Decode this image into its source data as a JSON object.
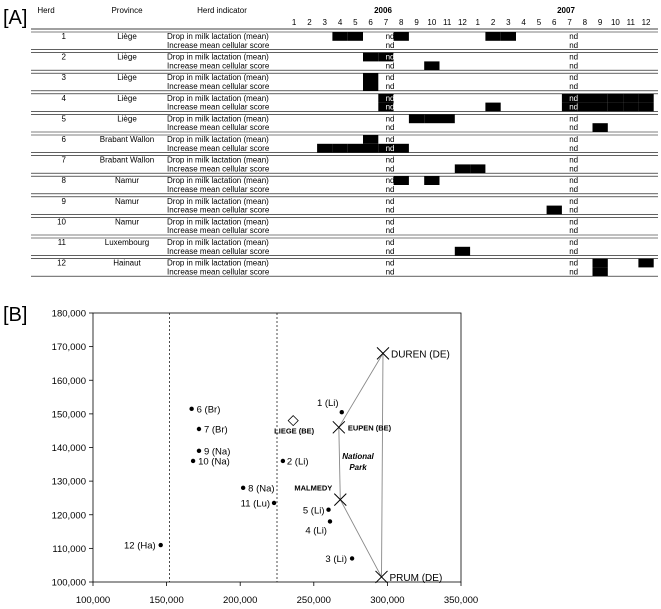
{
  "panel_a": {
    "label": "[A]",
    "headers": {
      "herd": "Herd",
      "province": "Province",
      "indicator": "Herd indicator"
    },
    "years": [
      "2006",
      "2007"
    ],
    "months": [
      "1",
      "2",
      "3",
      "4",
      "5",
      "6",
      "7",
      "8",
      "9",
      "10",
      "11",
      "12",
      "1",
      "2",
      "3",
      "4",
      "5",
      "6",
      "7",
      "8",
      "9",
      "10",
      "11",
      "12"
    ],
    "nd_label": "nd",
    "indicators": [
      "Drop in milk lactation (mean)",
      "Increase mean cellular score"
    ],
    "rows": [
      {
        "herd": "1",
        "province": "Liège",
        "drop": [
          4,
          5,
          8,
          14,
          15
        ],
        "increase": []
      },
      {
        "herd": "2",
        "province": "Liège",
        "drop": [
          6,
          7
        ],
        "increase": [
          10
        ]
      },
      {
        "herd": "3",
        "province": "Liège",
        "drop": [
          6
        ],
        "increase": [
          6
        ]
      },
      {
        "herd": "4",
        "province": "Liège",
        "drop": [
          7,
          19,
          20,
          21,
          22,
          23,
          24
        ],
        "increase": [
          7,
          14,
          19,
          20,
          21,
          22,
          23,
          24
        ]
      },
      {
        "herd": "5",
        "province": "Liège",
        "drop": [
          9,
          10,
          11
        ],
        "increase": [
          21
        ]
      },
      {
        "herd": "6",
        "province": "Brabant Wallon",
        "drop": [
          6
        ],
        "increase": [
          3,
          4,
          5,
          6,
          7,
          8
        ]
      },
      {
        "herd": "7",
        "province": "Brabant Wallon",
        "drop": [],
        "increase": [
          12,
          13
        ]
      },
      {
        "herd": "8",
        "province": "Namur",
        "drop": [
          8,
          10
        ],
        "increase": []
      },
      {
        "herd": "9",
        "province": "Namur",
        "drop": [],
        "increase": [
          18
        ]
      },
      {
        "herd": "10",
        "province": "Namur",
        "drop": [],
        "increase": []
      },
      {
        "herd": "11",
        "province": "Luxembourg",
        "drop": [],
        "increase": [
          12
        ]
      },
      {
        "herd": "12",
        "province": "Hainaut",
        "drop": [
          21,
          24
        ],
        "increase": [
          21
        ]
      }
    ]
  },
  "panel_b": {
    "label": "[B]",
    "chart_data": {
      "type": "scatter",
      "xlim": [
        100000,
        350000
      ],
      "ylim": [
        100000,
        180000
      ],
      "xticks": [
        "100,000",
        "150,000",
        "200,000",
        "250,000",
        "300,000",
        "350,000"
      ],
      "yticks": [
        "100,000",
        "110,000",
        "120,000",
        "130,000",
        "140,000",
        "150,000",
        "160,000",
        "170,000",
        "180,000"
      ],
      "vlines": [
        152000,
        225000
      ],
      "herds": [
        {
          "label": "1 (Li)",
          "x": 269000,
          "y": 150500
        },
        {
          "label": "2 (Li)",
          "x": 229000,
          "y": 136000
        },
        {
          "label": "3 (Li)",
          "x": 276000,
          "y": 107000
        },
        {
          "label": "4 (Li)",
          "x": 261000,
          "y": 118000
        },
        {
          "label": "5 (Li)",
          "x": 260000,
          "y": 121500
        },
        {
          "label": "6 (Br)",
          "x": 167000,
          "y": 151500
        },
        {
          "label": "7 (Br)",
          "x": 172000,
          "y": 145500
        },
        {
          "label": "8 (Na)",
          "x": 202000,
          "y": 128000
        },
        {
          "label": "9 (Na)",
          "x": 172000,
          "y": 139000
        },
        {
          "label": "10 (Na)",
          "x": 168000,
          "y": 136000
        },
        {
          "label": "11 (Lu)",
          "x": 223000,
          "y": 123500
        },
        {
          "label": "12 (Ha)",
          "x": 146000,
          "y": 111000
        }
      ],
      "places": [
        {
          "label": "DUREN (DE)",
          "x": 297000,
          "y": 168000,
          "marker": "x",
          "bold": false
        },
        {
          "label": "EUPEN (BE)",
          "x": 267000,
          "y": 146000,
          "marker": "x",
          "bold": true
        },
        {
          "label": "MALMEDY",
          "x": 268000,
          "y": 124500,
          "marker": "x",
          "bold": true
        },
        {
          "label": "PRUM (DE)",
          "x": 296000,
          "y": 101500,
          "marker": "x",
          "bold": false
        },
        {
          "label": "LIEGE (BE)",
          "x": 236000,
          "y": 148000,
          "marker": "diamond",
          "bold": true
        }
      ],
      "park_label": [
        "National",
        "Park"
      ]
    }
  }
}
